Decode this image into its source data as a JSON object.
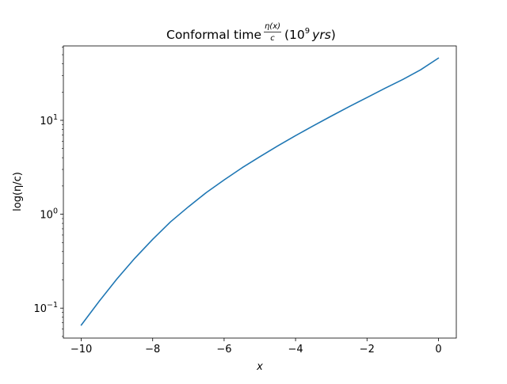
{
  "chart_data": {
    "type": "line",
    "title": {
      "prefix": "Conformal time ",
      "frac_num": "η(x)",
      "frac_den": "c",
      "suffix_open": " (10",
      "suffix_sup": "9",
      "suffix_units": "yrs",
      "suffix_close": ")"
    },
    "xlabel": "x",
    "ylabel": "log(η/c)",
    "xscale": "linear",
    "yscale": "log",
    "xlim": [
      -10.5,
      0.5
    ],
    "ylim": [
      0.048,
      62
    ],
    "grid": false,
    "x_ticks": [
      {
        "value": -10,
        "label": "−10"
      },
      {
        "value": -8,
        "label": "−8"
      },
      {
        "value": -6,
        "label": "−6"
      },
      {
        "value": -4,
        "label": "−4"
      },
      {
        "value": -2,
        "label": "−2"
      },
      {
        "value": 0,
        "label": "0"
      }
    ],
    "y_ticks": [
      {
        "value": 0.1,
        "base": "10",
        "exp": "−1"
      },
      {
        "value": 1,
        "base": "10",
        "exp": "0"
      },
      {
        "value": 10,
        "base": "10",
        "exp": "1"
      }
    ],
    "series": [
      {
        "color": "#1f77b4",
        "x": [
          -10,
          -9.5,
          -9,
          -8.5,
          -8,
          -7.5,
          -7,
          -6.5,
          -6,
          -5.5,
          -5,
          -4.5,
          -4,
          -3.5,
          -3,
          -2.5,
          -2,
          -1.5,
          -1,
          -0.5,
          0
        ],
        "y": [
          0.066,
          0.118,
          0.205,
          0.34,
          0.54,
          0.83,
          1.2,
          1.7,
          2.32,
          3.12,
          4.1,
          5.34,
          6.87,
          8.75,
          11.1,
          14.0,
          17.5,
          21.9,
          27.2,
          34.5,
          46.0
        ]
      }
    ]
  }
}
